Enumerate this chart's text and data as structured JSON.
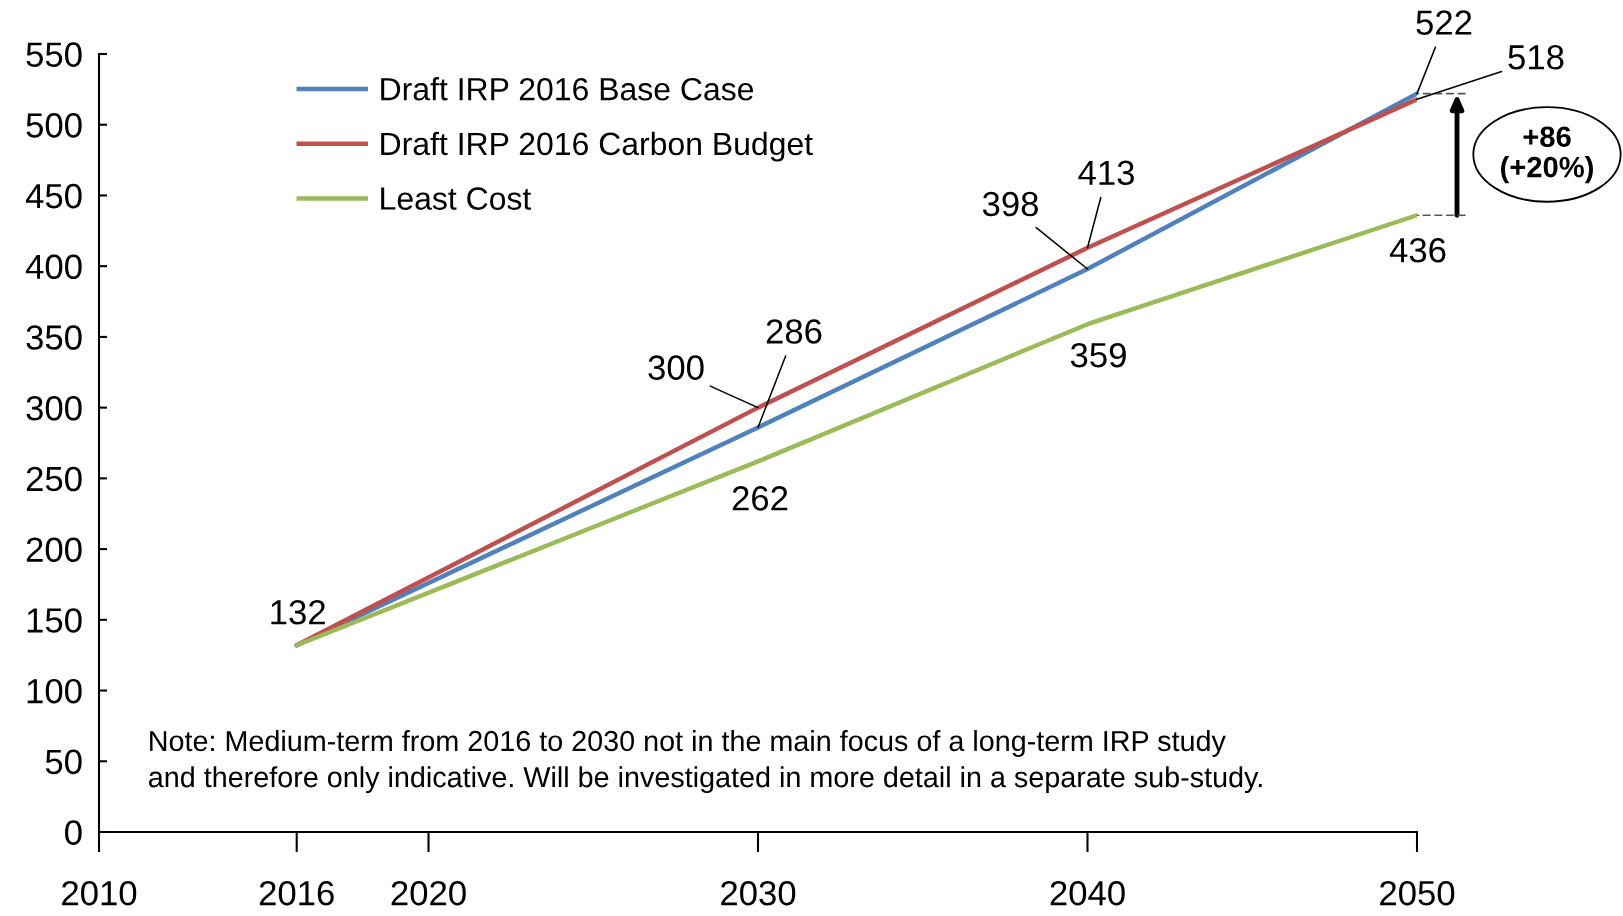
{
  "chart_data": {
    "type": "line",
    "x": [
      2016,
      2030,
      2040,
      2050
    ],
    "xlim": [
      2010,
      2050
    ],
    "xticks": [
      2010,
      2016,
      2020,
      2030,
      2040,
      2050
    ],
    "ylim": [
      0,
      550
    ],
    "yticks": [
      0,
      50,
      100,
      150,
      200,
      250,
      300,
      350,
      400,
      450,
      500,
      550
    ],
    "grid": false,
    "legend": "top left",
    "line_style": "solid",
    "series": [
      {
        "name": "Draft IRP 2016 Base Case",
        "color": "#4f81bd",
        "values": [
          132,
          286,
          398,
          522
        ],
        "value_labels": [
          "132",
          "286",
          "398",
          "522"
        ]
      },
      {
        "name": "Draft IRP 2016 Carbon Budget",
        "color": "#c0504d",
        "values": [
          132,
          300,
          413,
          518
        ],
        "value_labels": [
          null,
          "300",
          "413",
          "518"
        ]
      },
      {
        "name": "Least Cost",
        "color": "#9bbb59",
        "values": [
          132,
          262,
          359,
          436
        ],
        "value_labels": [
          null,
          "262",
          "359",
          "436"
        ]
      }
    ],
    "annotations": [
      "+86\n(+20%)",
      "Note: Medium-term from 2016 to 2030 not in the main focus of a long-term IRP study\nand therefore only indicative. Will be investigated in more detail in a separate sub-study."
    ]
  }
}
